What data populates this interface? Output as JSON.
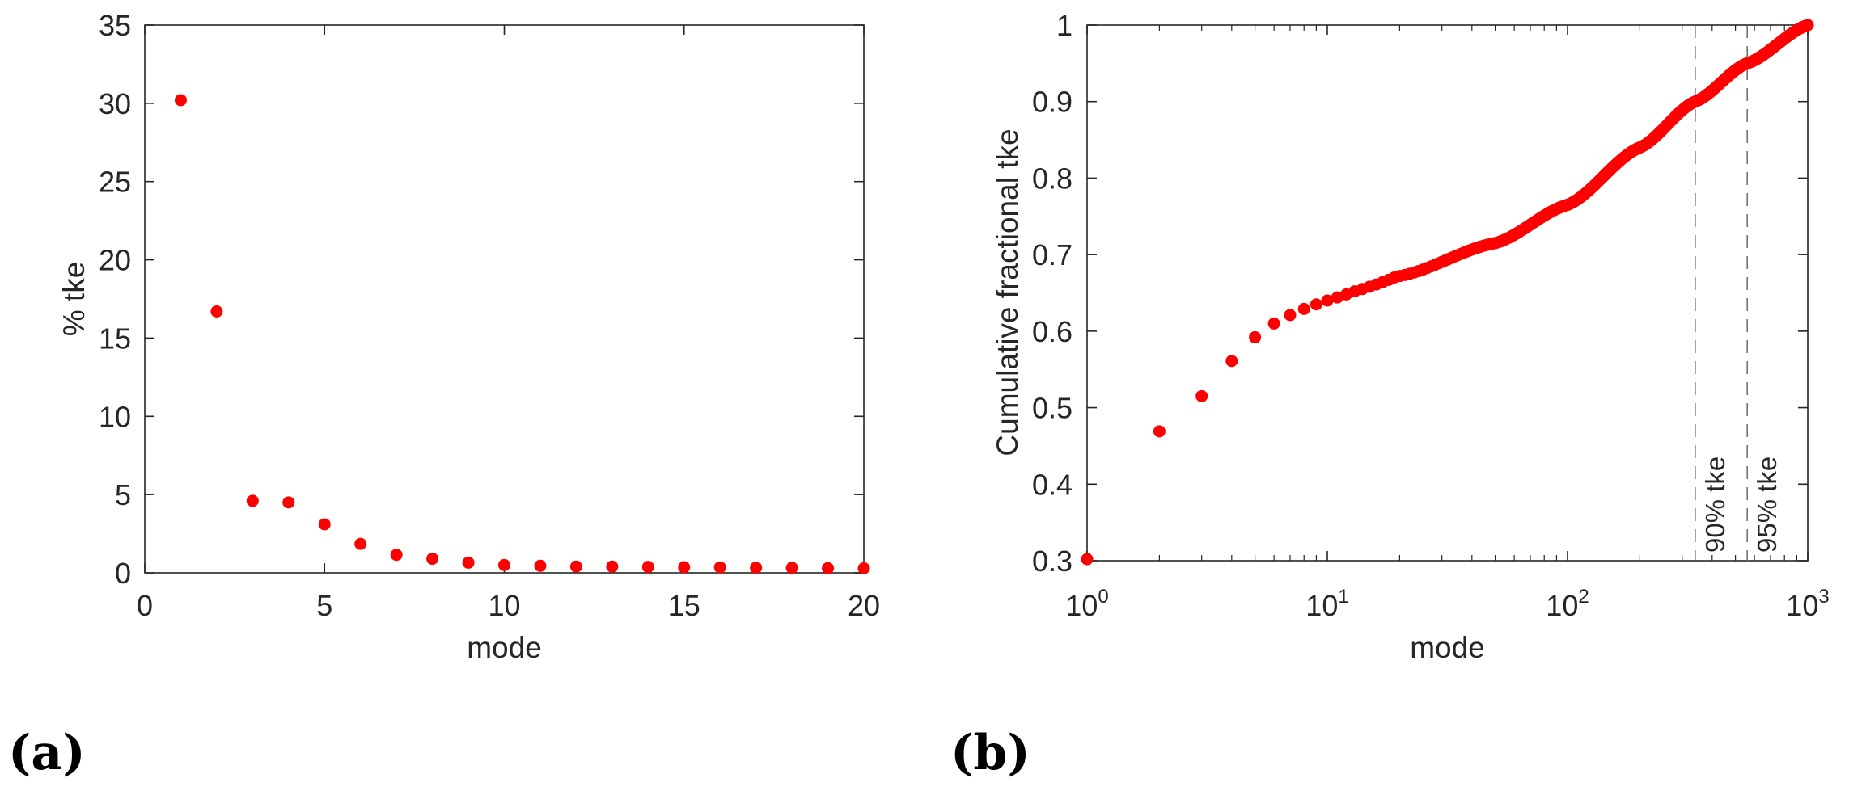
{
  "colors": {
    "marker": "#ff0000",
    "axis": "#262626",
    "vline": "#707070"
  },
  "panels": {
    "a": "(a)",
    "b": "(b)"
  },
  "chart_data": [
    {
      "type": "scatter",
      "xlabel": "mode",
      "ylabel": "% tke",
      "xlim": [
        0,
        20
      ],
      "ylim": [
        0,
        35
      ],
      "xticks": [
        0,
        5,
        10,
        15,
        20
      ],
      "yticks": [
        0,
        5,
        10,
        15,
        20,
        25,
        30,
        35
      ],
      "xtick_labels": [
        "0",
        "5",
        "10",
        "15",
        "20"
      ],
      "ytick_labels": [
        "0",
        "5",
        "10",
        "15",
        "20",
        "25",
        "30",
        "35"
      ],
      "x": [
        1,
        2,
        3,
        4,
        5,
        6,
        7,
        8,
        9,
        10,
        11,
        12,
        13,
        14,
        15,
        16,
        17,
        18,
        19,
        20
      ],
      "y": [
        30.2,
        16.7,
        4.6,
        4.5,
        3.1,
        1.85,
        1.15,
        0.9,
        0.65,
        0.5,
        0.45,
        0.4,
        0.4,
        0.38,
        0.36,
        0.35,
        0.33,
        0.32,
        0.3,
        0.29
      ]
    },
    {
      "type": "scatter",
      "xscale": "log",
      "xlabel": "mode",
      "ylabel": "Cumulative fractional tke",
      "xlim": [
        1,
        1000
      ],
      "ylim": [
        0.3,
        1
      ],
      "xticks": [
        1,
        10,
        100,
        1000
      ],
      "xtick_base": "10",
      "xtick_exponents": [
        "0",
        "1",
        "2",
        "3"
      ],
      "yticks": [
        0.3,
        0.4,
        0.5,
        0.6,
        0.7,
        0.8,
        0.9,
        1
      ],
      "ytick_labels": [
        "0.3",
        "0.4",
        "0.5",
        "0.6",
        "0.7",
        "0.8",
        "0.9",
        "1"
      ],
      "n_points": 1000,
      "first_points": [
        0.302,
        0.469,
        0.515,
        0.561,
        0.592,
        0.61,
        0.621,
        0.629,
        0.635,
        0.64,
        0.644,
        0.648,
        0.652,
        0.655,
        0.658,
        0.661,
        0.664,
        0.667,
        0.67,
        0.672
      ],
      "curve_anchors": [
        {
          "x": 20,
          "y": 0.672
        },
        {
          "x": 50,
          "y": 0.715
        },
        {
          "x": 100,
          "y": 0.765
        },
        {
          "x": 200,
          "y": 0.84
        },
        {
          "x": 340,
          "y": 0.9
        },
        {
          "x": 560,
          "y": 0.95
        },
        {
          "x": 1000,
          "y": 1.0
        }
      ],
      "vlines": [
        {
          "x": 340,
          "label": "90% tke"
        },
        {
          "x": 560,
          "label": "95% tke"
        }
      ]
    }
  ]
}
